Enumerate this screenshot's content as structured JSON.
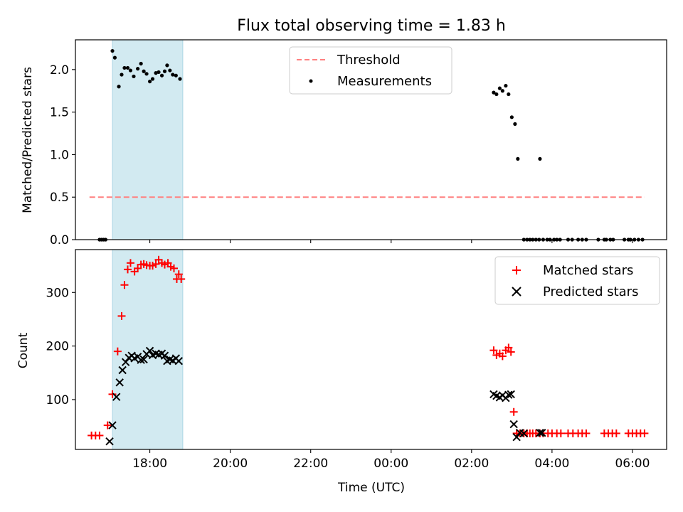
{
  "figure": {
    "title": "Flux total observing time = 1.83 h",
    "xlabel": "Time (UTC)",
    "x_tick_labels": [
      "18:00",
      "20:00",
      "22:00",
      "00:00",
      "02:00",
      "04:00",
      "06:00"
    ],
    "x_tick_hours": [
      18,
      20,
      22,
      24,
      26,
      28,
      30
    ],
    "x_range_hours": [
      16.15,
      30.85
    ],
    "shaded_interval_hours": [
      17.07,
      18.82
    ],
    "colors": {
      "shade": "#add8e6",
      "threshold": "#ff8080",
      "measurements": "#000000",
      "matched": "#ff0000",
      "predicted": "#000000"
    }
  },
  "chart_data": [
    {
      "type": "scatter",
      "panel": "top",
      "ylabel": "Matched/Predicted stars",
      "ylim": [
        0,
        2.35
      ],
      "y_ticks": [
        0.0,
        0.5,
        1.0,
        1.5,
        2.0
      ],
      "y_tick_labels": [
        "0.0",
        "0.5",
        "1.0",
        "1.5",
        "2.0"
      ],
      "legend_position": "top-center",
      "threshold": {
        "name": "Threshold",
        "y": 0.5,
        "x_range": [
          16.5,
          30.3
        ],
        "style": "dashed"
      },
      "series": [
        {
          "name": "Measurements",
          "marker": "dot",
          "points": [
            [
              16.75,
              0
            ],
            [
              16.8,
              0
            ],
            [
              16.85,
              0
            ],
            [
              16.9,
              0
            ],
            [
              17.07,
              2.22
            ],
            [
              17.13,
              2.14
            ],
            [
              17.23,
              1.8
            ],
            [
              17.3,
              1.94
            ],
            [
              17.37,
              2.02
            ],
            [
              17.45,
              2.02
            ],
            [
              17.52,
              1.99
            ],
            [
              17.6,
              1.92
            ],
            [
              17.7,
              2.01
            ],
            [
              17.78,
              2.07
            ],
            [
              17.85,
              1.98
            ],
            [
              17.92,
              1.95
            ],
            [
              18.0,
              1.86
            ],
            [
              18.07,
              1.89
            ],
            [
              18.15,
              1.96
            ],
            [
              18.22,
              1.97
            ],
            [
              18.3,
              1.93
            ],
            [
              18.37,
              1.98
            ],
            [
              18.43,
              2.05
            ],
            [
              18.5,
              1.99
            ],
            [
              18.57,
              1.94
            ],
            [
              18.65,
              1.93
            ],
            [
              18.75,
              1.89
            ],
            [
              26.55,
              1.73
            ],
            [
              26.62,
              1.71
            ],
            [
              26.7,
              1.78
            ],
            [
              26.77,
              1.75
            ],
            [
              26.85,
              1.81
            ],
            [
              26.92,
              1.71
            ],
            [
              27.0,
              1.44
            ],
            [
              27.08,
              1.36
            ],
            [
              27.15,
              0.95
            ],
            [
              27.7,
              0.95
            ],
            [
              27.3,
              0
            ],
            [
              27.38,
              0
            ],
            [
              27.45,
              0
            ],
            [
              27.52,
              0
            ],
            [
              27.6,
              0
            ],
            [
              27.68,
              0
            ],
            [
              27.78,
              0
            ],
            [
              27.88,
              0
            ],
            [
              27.95,
              0
            ],
            [
              28.05,
              0
            ],
            [
              28.12,
              0
            ],
            [
              28.2,
              0
            ],
            [
              28.4,
              0
            ],
            [
              28.5,
              0
            ],
            [
              28.65,
              0
            ],
            [
              28.75,
              0
            ],
            [
              28.85,
              0
            ],
            [
              29.15,
              0
            ],
            [
              29.3,
              0
            ],
            [
              29.35,
              0
            ],
            [
              29.45,
              0
            ],
            [
              29.52,
              0
            ],
            [
              29.8,
              0
            ],
            [
              29.9,
              0
            ],
            [
              29.95,
              0
            ],
            [
              30.05,
              0
            ],
            [
              30.15,
              0
            ],
            [
              30.25,
              0
            ]
          ]
        }
      ]
    },
    {
      "type": "scatter",
      "panel": "bottom",
      "ylabel": "Count",
      "ylim": [
        7,
        380
      ],
      "y_ticks": [
        100,
        200,
        300
      ],
      "y_tick_labels": [
        "100",
        "200",
        "300"
      ],
      "legend_position": "top-right",
      "series": [
        {
          "name": "Matched stars",
          "marker": "plus",
          "points": [
            [
              16.55,
              33
            ],
            [
              16.65,
              33
            ],
            [
              16.75,
              33
            ],
            [
              16.95,
              52
            ],
            [
              17.07,
              110
            ],
            [
              17.2,
              190
            ],
            [
              17.3,
              256
            ],
            [
              17.37,
              314
            ],
            [
              17.45,
              343
            ],
            [
              17.52,
              355
            ],
            [
              17.62,
              339
            ],
            [
              17.7,
              345
            ],
            [
              17.78,
              352
            ],
            [
              17.85,
              353
            ],
            [
              17.92,
              351
            ],
            [
              18.0,
              350
            ],
            [
              18.07,
              350
            ],
            [
              18.15,
              353
            ],
            [
              18.22,
              361
            ],
            [
              18.3,
              355
            ],
            [
              18.37,
              352
            ],
            [
              18.45,
              355
            ],
            [
              18.52,
              348
            ],
            [
              18.6,
              345
            ],
            [
              18.67,
              325
            ],
            [
              18.72,
              334
            ],
            [
              18.78,
              325
            ],
            [
              26.55,
              192
            ],
            [
              26.62,
              183
            ],
            [
              26.7,
              186
            ],
            [
              26.77,
              181
            ],
            [
              26.85,
              192
            ],
            [
              26.92,
              197
            ],
            [
              26.98,
              189
            ],
            [
              27.05,
              77
            ],
            [
              27.12,
              37
            ],
            [
              27.2,
              37
            ],
            [
              27.3,
              37
            ],
            [
              27.38,
              37
            ],
            [
              27.45,
              37
            ],
            [
              27.52,
              37
            ],
            [
              27.6,
              37
            ],
            [
              27.7,
              37
            ],
            [
              27.78,
              37
            ],
            [
              27.9,
              37
            ],
            [
              28.0,
              37
            ],
            [
              28.12,
              37
            ],
            [
              28.22,
              37
            ],
            [
              28.4,
              37
            ],
            [
              28.52,
              37
            ],
            [
              28.65,
              37
            ],
            [
              28.75,
              37
            ],
            [
              28.85,
              37
            ],
            [
              29.3,
              37
            ],
            [
              29.4,
              37
            ],
            [
              29.5,
              37
            ],
            [
              29.6,
              37
            ],
            [
              29.9,
              37
            ],
            [
              30.0,
              37
            ],
            [
              30.1,
              37
            ],
            [
              30.2,
              37
            ],
            [
              30.3,
              37
            ]
          ]
        },
        {
          "name": "Predicted stars",
          "marker": "x",
          "points": [
            [
              17.0,
              22
            ],
            [
              17.07,
              52
            ],
            [
              17.17,
              105
            ],
            [
              17.25,
              132
            ],
            [
              17.32,
              155
            ],
            [
              17.4,
              170
            ],
            [
              17.48,
              178
            ],
            [
              17.55,
              182
            ],
            [
              17.62,
              177
            ],
            [
              17.7,
              180
            ],
            [
              17.78,
              174
            ],
            [
              17.85,
              175
            ],
            [
              17.92,
              185
            ],
            [
              18.0,
              191
            ],
            [
              18.07,
              183
            ],
            [
              18.15,
              186
            ],
            [
              18.22,
              184
            ],
            [
              18.3,
              186
            ],
            [
              18.37,
              182
            ],
            [
              18.43,
              172
            ],
            [
              18.5,
              175
            ],
            [
              18.57,
              173
            ],
            [
              18.65,
              177
            ],
            [
              18.72,
              172
            ],
            [
              26.55,
              110
            ],
            [
              26.62,
              107
            ],
            [
              26.7,
              104
            ],
            [
              26.77,
              108
            ],
            [
              26.85,
              103
            ],
            [
              26.92,
              109
            ],
            [
              26.98,
              110
            ],
            [
              27.05,
              54
            ],
            [
              27.12,
              30
            ],
            [
              27.2,
              38
            ],
            [
              27.3,
              37
            ],
            [
              27.7,
              38
            ],
            [
              27.75,
              38
            ]
          ]
        }
      ]
    }
  ]
}
